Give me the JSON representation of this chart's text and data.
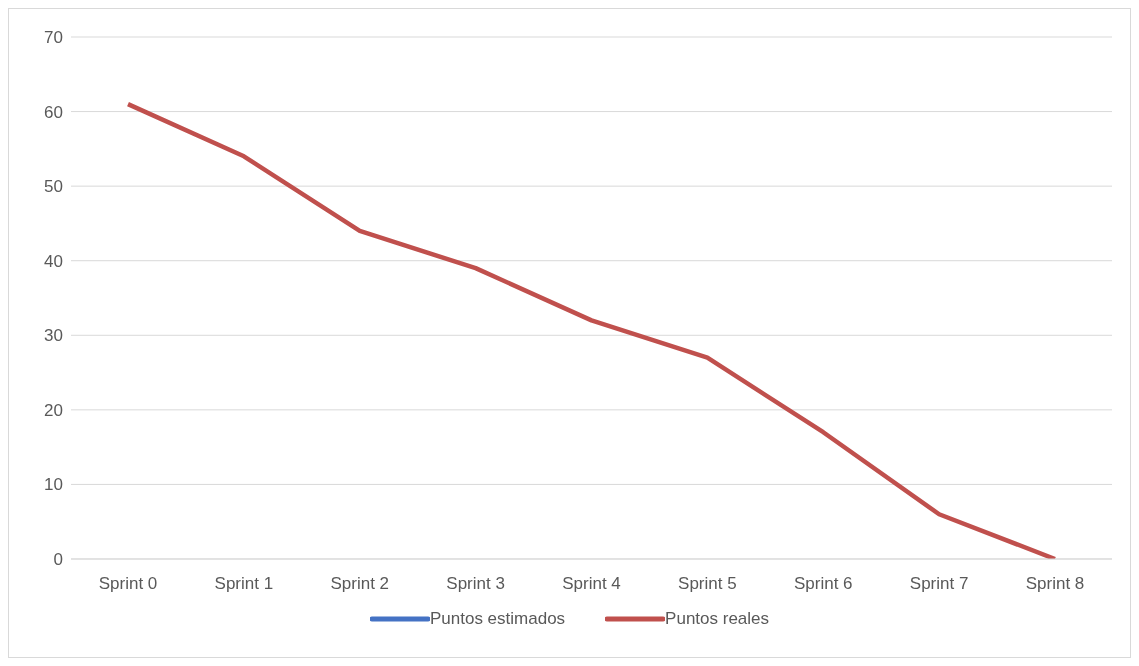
{
  "chart_data": {
    "type": "line",
    "categories": [
      "Sprint 0",
      "Sprint 1",
      "Sprint 2",
      "Sprint 3",
      "Sprint 4",
      "Sprint 5",
      "Sprint 6",
      "Sprint 7",
      "Sprint 8"
    ],
    "series": [
      {
        "name": "Puntos estimados",
        "color": "#4472c4",
        "values": [
          null,
          null,
          null,
          null,
          null,
          null,
          null,
          null,
          null
        ]
      },
      {
        "name": "Puntos reales",
        "color": "#c0504d",
        "values": [
          61,
          54,
          44,
          39,
          32,
          27,
          17,
          6,
          0
        ]
      }
    ],
    "ylim": [
      0,
      70
    ],
    "yticks": [
      0,
      10,
      20,
      30,
      40,
      50,
      60,
      70
    ],
    "grid": "y",
    "legend": "bottom",
    "marker": "none",
    "line_style": "solid"
  }
}
